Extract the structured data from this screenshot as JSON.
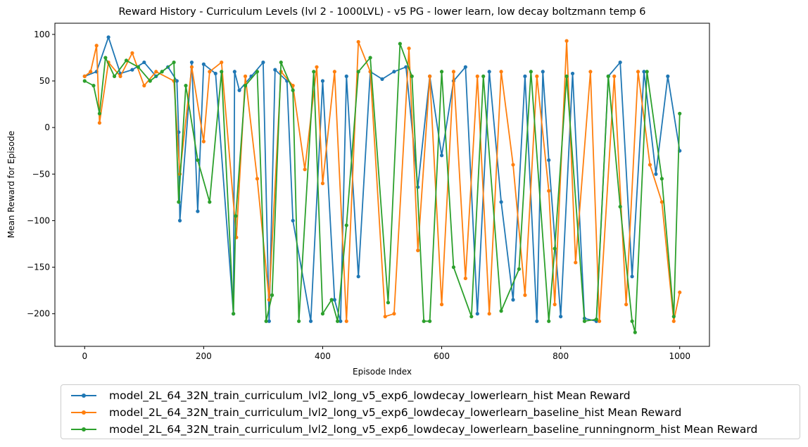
{
  "chart_data": {
    "type": "line",
    "title": "Reward History - Curriculum Levels (lvl 2 - 1000LVL) - v5 PG - lower learn, low decay boltzmann temp 6",
    "xlabel": "Episode Index",
    "ylabel": "Mean Reward for Episode",
    "xlim": [
      -50,
      1050
    ],
    "ylim": [
      -235,
      112
    ],
    "xticks": [
      0,
      200,
      400,
      600,
      800,
      1000
    ],
    "yticks": [
      -200,
      -150,
      -100,
      -50,
      0,
      50,
      100
    ],
    "grid": false,
    "legend_placement": "below",
    "series": [
      {
        "name": "model_2L_64_32N_train_curriculum_lvl2_long_v5_exp6_lowdecay_lowerlearn_hist Mean Reward",
        "color": "#1f77b4",
        "x": [
          0,
          20,
          40,
          60,
          80,
          100,
          120,
          140,
          155,
          158,
          160,
          180,
          190,
          200,
          220,
          250,
          252,
          260,
          280,
          300,
          310,
          320,
          340,
          350,
          380,
          400,
          420,
          430,
          440,
          460,
          480,
          500,
          520,
          540,
          560,
          580,
          600,
          620,
          640,
          660,
          680,
          700,
          720,
          740,
          760,
          770,
          780,
          800,
          820,
          840,
          860,
          880,
          900,
          920,
          940,
          960,
          980,
          1000
        ],
        "values": [
          55,
          60,
          97,
          58,
          62,
          70,
          55,
          65,
          50,
          -5,
          -100,
          70,
          -90,
          68,
          58,
          -200,
          60,
          40,
          55,
          70,
          -208,
          62,
          50,
          -100,
          -208,
          50,
          -185,
          -208,
          55,
          -160,
          60,
          52,
          60,
          65,
          -64,
          55,
          -30,
          50,
          65,
          -200,
          60,
          -80,
          -185,
          55,
          -208,
          60,
          -35,
          -203,
          58,
          -205,
          -208,
          55,
          70,
          -160,
          60,
          -50,
          55,
          -25
        ]
      },
      {
        "name": "model_2L_64_32N_train_curriculum_lvl2_long_v5_exp6_lowdecay_lowerlearn_baseline_hist Mean Reward",
        "color": "#ff7f0e",
        "x": [
          0,
          10,
          20,
          25,
          40,
          60,
          80,
          100,
          120,
          150,
          160,
          180,
          200,
          210,
          230,
          255,
          270,
          290,
          310,
          330,
          350,
          370,
          390,
          400,
          420,
          440,
          460,
          480,
          505,
          520,
          545,
          560,
          580,
          600,
          620,
          640,
          660,
          680,
          700,
          720,
          740,
          760,
          780,
          790,
          810,
          825,
          850,
          865,
          890,
          910,
          930,
          950,
          970,
          990,
          1000
        ],
        "values": [
          55,
          60,
          88,
          5,
          70,
          55,
          80,
          45,
          60,
          50,
          -50,
          65,
          -15,
          60,
          70,
          -118,
          55,
          -55,
          -185,
          60,
          45,
          -45,
          65,
          -60,
          60,
          -208,
          92,
          60,
          -203,
          -200,
          85,
          -132,
          55,
          -190,
          60,
          -162,
          55,
          -200,
          60,
          -40,
          -180,
          55,
          -68,
          -190,
          93,
          -145,
          60,
          -208,
          55,
          -190,
          60,
          -40,
          -80,
          -208,
          -177
        ]
      },
      {
        "name": "model_2L_64_32N_train_curriculum_lvl2_long_v5_exp6_lowdecay_lowerlearn_baseline_runningnorm_hist Mean Reward",
        "color": "#2ca02c",
        "x": [
          0,
          15,
          25,
          35,
          50,
          70,
          90,
          110,
          130,
          150,
          158,
          170,
          190,
          210,
          230,
          250,
          254,
          270,
          290,
          305,
          315,
          330,
          350,
          360,
          385,
          400,
          415,
          425,
          440,
          460,
          480,
          510,
          530,
          550,
          570,
          580,
          600,
          620,
          650,
          670,
          700,
          730,
          750,
          780,
          790,
          810,
          840,
          860,
          880,
          900,
          920,
          925,
          945,
          970,
          990,
          1000
        ],
        "values": [
          50,
          45,
          15,
          75,
          55,
          72,
          65,
          50,
          60,
          70,
          -80,
          45,
          -35,
          -80,
          60,
          -200,
          -95,
          45,
          60,
          -208,
          -180,
          70,
          40,
          -208,
          60,
          -200,
          -185,
          -208,
          -105,
          60,
          75,
          -188,
          90,
          55,
          -208,
          -208,
          60,
          -150,
          -203,
          55,
          -197,
          -152,
          60,
          -208,
          -130,
          55,
          -208,
          -206,
          55,
          -85,
          -208,
          -220,
          60,
          -55,
          -203,
          15
        ]
      }
    ]
  }
}
